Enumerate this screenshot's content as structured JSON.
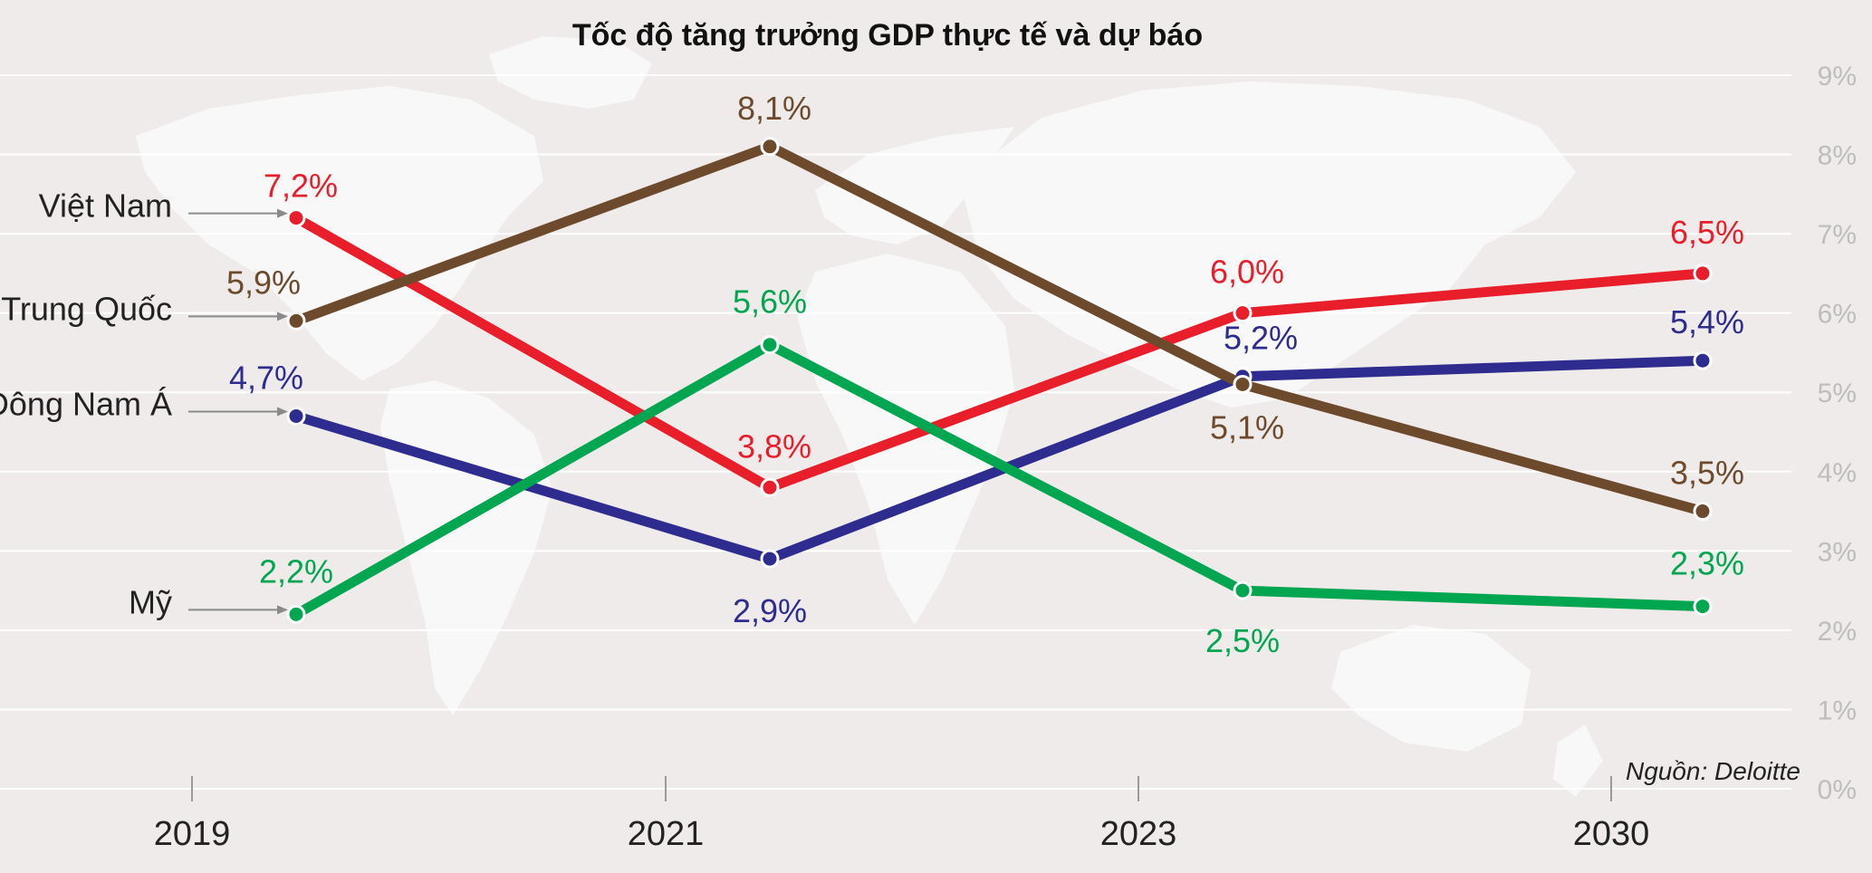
{
  "chart_data": {
    "type": "line",
    "title": "Tốc độ tăng trưởng GDP thực tế và dự báo",
    "categories": [
      "2019",
      "2021",
      "2023",
      "2030"
    ],
    "y_ticks": [
      "0%",
      "1%",
      "2%",
      "3%",
      "4%",
      "5%",
      "6%",
      "7%",
      "8%",
      "9%"
    ],
    "ylim": [
      0,
      9
    ],
    "grid": true,
    "source": "Nguồn: Deloitte",
    "series": [
      {
        "name": "Việt Nam",
        "color": "#e81f2b",
        "values": [
          7.2,
          3.8,
          6.0,
          6.5
        ],
        "labels": [
          "7,2%",
          "3,8%",
          "6,0%",
          "6,5%"
        ]
      },
      {
        "name": "Trung Quốc",
        "color": "#6e4a2c",
        "values": [
          5.9,
          8.1,
          5.1,
          3.5
        ],
        "labels": [
          "5,9%",
          "8,1%",
          "5,1%",
          "3,5%"
        ]
      },
      {
        "name": "Đông Nam Á",
        "color": "#2e2c8f",
        "values": [
          4.7,
          2.9,
          5.2,
          5.4
        ],
        "labels": [
          "4,7%",
          "2,9%",
          "5,2%",
          "5,4%"
        ]
      },
      {
        "name": "Mỹ",
        "color": "#00a650",
        "values": [
          2.2,
          5.6,
          2.5,
          2.3
        ],
        "labels": [
          "2,2%",
          "5,6%",
          "2,5%",
          "2,3%"
        ]
      }
    ]
  }
}
